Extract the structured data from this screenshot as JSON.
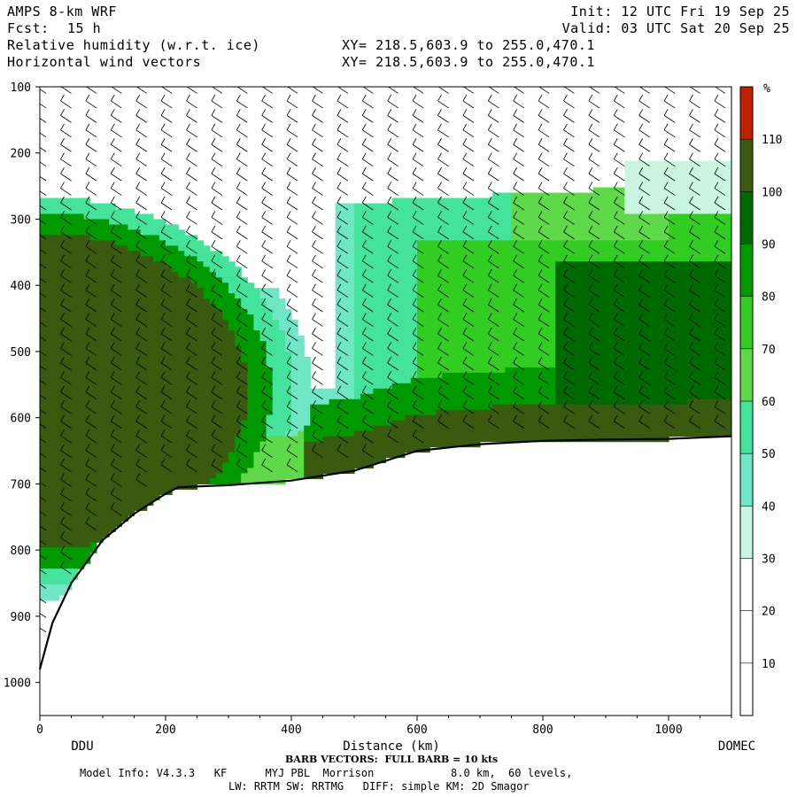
{
  "header": {
    "model_title": "AMPS 8-km WRF",
    "forecast_label": "Fcst:",
    "forecast_value": "15 h",
    "field_line1": "Relative humidity (w.r.t. ice)",
    "field_line2": "Horizontal wind vectors",
    "xy_line1": "XY= 218.5,603.9 to 255.0,470.1",
    "xy_line2": "XY= 218.5,603.9 to 255.0,470.1",
    "init_time": "Init: 12 UTC Fri 19 Sep 25",
    "valid_time": "Valid: 03 UTC Sat 20 Sep 25"
  },
  "chart_data": {
    "type": "heatmap",
    "x_axis": {
      "label": "Distance (km)",
      "range": [
        0,
        1100
      ],
      "ticks": [
        0,
        200,
        400,
        600,
        800,
        1000
      ],
      "endpoints": {
        "left": "DDU",
        "right": "DOMEC"
      }
    },
    "y_axis": {
      "label": "",
      "range": [
        1050,
        100
      ],
      "inverted": true,
      "ticks": [
        100,
        200,
        300,
        400,
        500,
        600,
        700,
        800,
        900,
        1000
      ]
    },
    "colorbar": {
      "units": "%",
      "ticks": [
        10,
        20,
        30,
        40,
        50,
        60,
        70,
        80,
        90,
        100,
        110
      ],
      "colors": [
        "#ffffff",
        "#ffffff",
        "#ffffff",
        "#c9f5e2",
        "#6fe6c6",
        "#44e29a",
        "#5fd94a",
        "#33cc22",
        "#009a00",
        "#006a00",
        "#3a5a10",
        "#c02000"
      ]
    },
    "terrain": {
      "x": [
        0,
        20,
        50,
        100,
        150,
        200,
        220,
        300,
        400,
        500,
        600,
        700,
        800,
        900,
        1000,
        1100
      ],
      "p": [
        980,
        910,
        850,
        785,
        745,
        715,
        705,
        702,
        695,
        680,
        650,
        640,
        635,
        633,
        632,
        628
      ]
    },
    "barbs_note": "BARB VECTORS:  FULL BARB = 10 kts"
  },
  "footer": {
    "barb_note": "BARB VECTORS:  FULL BARB = 10 kts",
    "model_info_line1": "Model Info: V4.3.3   KF      MYJ PBL  Morrison            8.0 km,  60 levels,",
    "model_info_line2": "LW: RRTM SW: RRTMG   DIFF: simple KM: 2D Smagor"
  }
}
